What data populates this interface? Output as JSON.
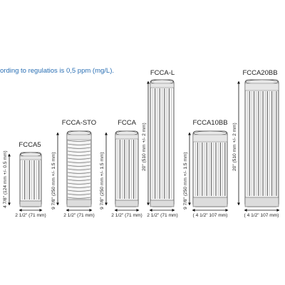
{
  "header_text": "ording to regulatios is 0,5 ppm (mg/L).",
  "cartridges": [
    {
      "model": "FCCA5",
      "height_label": "4 7/8\" (124 mm +/- 0.5 mm)",
      "width_label": "2 1/2\" (71 mm)",
      "style": "ribbed"
    },
    {
      "model": "FCCA-STO",
      "height_label": "9 7/8\" (250 mm +/- 1.5 mm)",
      "width_label": "2 1/2\" (71 mm)",
      "style": "wound"
    },
    {
      "model": "FCCA",
      "height_label": "9 7/8\" (250 mm +/- 1.5 mm)",
      "width_label": "2 1/2\" (71 mm)",
      "style": "ribbed"
    },
    {
      "model": "FCCA-L",
      "height_label": "20\" (510 mm +/- 2 mm)",
      "width_label": "2 1/2\" (71 mm)",
      "style": "ribbed"
    },
    {
      "model": "FCCA10BB",
      "height_label": "9 7/8\" (250 mm +/- 1.5 mm)",
      "width_label": "( 4 1/2\" 107 mm)",
      "style": "ribbed"
    },
    {
      "model": "FCCA20BB",
      "height_label": "20\" (510 mm +/- 2 mm)",
      "width_label": "( 4 1/2\" 107 mm)",
      "style": "ribbed"
    }
  ]
}
